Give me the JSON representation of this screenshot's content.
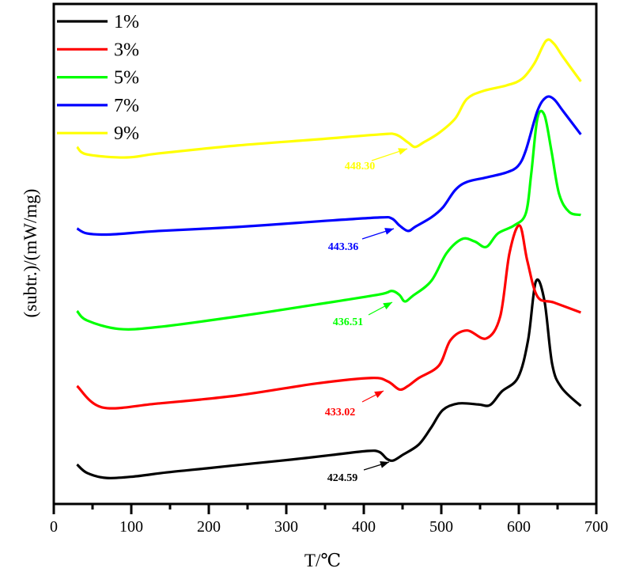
{
  "chart_data": {
    "type": "line",
    "title": "",
    "xlabel": "T/℃",
    "ylabel": "(subtr.)/(mW/mg)",
    "xlim": [
      0,
      700
    ],
    "ylim": [
      0,
      100
    ],
    "xticks": [
      0,
      100,
      200,
      300,
      400,
      500,
      600,
      700
    ],
    "yticks": [],
    "grid": false,
    "legend_position": "top-left",
    "series": [
      {
        "name": "1%",
        "color": "#000000",
        "x": [
          30,
          43,
          68,
          104,
          145,
          196,
          257,
          308,
          359,
          405,
          420,
          430,
          438,
          450,
          471,
          487,
          502,
          522,
          548,
          563,
          578,
          599,
          612,
          622,
          633,
          643,
          655,
          680
        ],
        "y": [
          7.9,
          6.2,
          5.2,
          5.5,
          6.3,
          7.1,
          8.1,
          8.9,
          9.8,
          10.6,
          10.4,
          9.0,
          8.7,
          9.8,
          11.9,
          15.3,
          18.8,
          20.1,
          19.9,
          19.8,
          22.5,
          25.3,
          32.8,
          44.5,
          40.7,
          28.0,
          23.3,
          19.6
        ],
        "annotation": "424.59"
      },
      {
        "name": "3%",
        "color": "#ff0000",
        "x": [
          30,
          63,
          135,
          237,
          339,
          410,
          431,
          446,
          457,
          471,
          497,
          512,
          533,
          558,
          576,
          588,
          601,
          611,
          624,
          645,
          680
        ],
        "y": [
          23.6,
          19.3,
          20.1,
          21.7,
          24.1,
          25.2,
          24.5,
          22.9,
          23.6,
          25.2,
          27.7,
          32.8,
          34.7,
          33.1,
          37.5,
          50.2,
          55.7,
          48.6,
          41.5,
          40.3,
          38.3
        ],
        "annotation": "433.02"
      },
      {
        "name": "5%",
        "color": "#00ff00",
        "x": [
          30,
          43,
          84,
          135,
          237,
          339,
          420,
          436,
          446,
          453,
          463,
          487,
          507,
          527,
          543,
          558,
          573,
          594,
          609,
          616,
          624,
          633,
          642,
          652,
          665,
          680
        ],
        "y": [
          38.6,
          36.7,
          35.0,
          35.4,
          37.5,
          39.9,
          41.9,
          42.6,
          41.8,
          40.5,
          41.6,
          44.6,
          50.2,
          53.0,
          52.5,
          51.4,
          54.1,
          55.7,
          58.1,
          66.0,
          77.1,
          77.8,
          70.7,
          62.0,
          58.4,
          57.8
        ],
        "annotation": "436.51"
      },
      {
        "name": "7%",
        "color": "#0000ff",
        "x": [
          30,
          43,
          73,
          135,
          237,
          339,
          420,
          436,
          446,
          457,
          467,
          487,
          502,
          518,
          533,
          558,
          584,
          599,
          609,
          624,
          635,
          645,
          657,
          680
        ],
        "y": [
          55.1,
          54.1,
          53.9,
          54.6,
          55.4,
          56.5,
          57.3,
          57.1,
          55.7,
          54.6,
          55.5,
          57.3,
          59.3,
          62.8,
          64.4,
          65.3,
          66.3,
          67.6,
          70.7,
          78.6,
          81.3,
          81.0,
          78.6,
          73.9
        ],
        "annotation": "443.36"
      },
      {
        "name": "9%",
        "color": "#ffff00",
        "x": [
          30,
          43,
          94,
          135,
          237,
          339,
          420,
          441,
          457,
          466,
          477,
          497,
          518,
          533,
          554,
          584,
          604,
          620,
          635,
          645,
          657,
          680
        ],
        "y": [
          71.4,
          69.9,
          69.3,
          70.1,
          71.7,
          72.9,
          73.9,
          73.9,
          72.3,
          71.4,
          72.3,
          74.2,
          77.1,
          81.0,
          82.6,
          83.7,
          85.0,
          88.1,
          92.6,
          92.1,
          89.4,
          84.5
        ],
        "annotation": "448.30"
      }
    ]
  }
}
